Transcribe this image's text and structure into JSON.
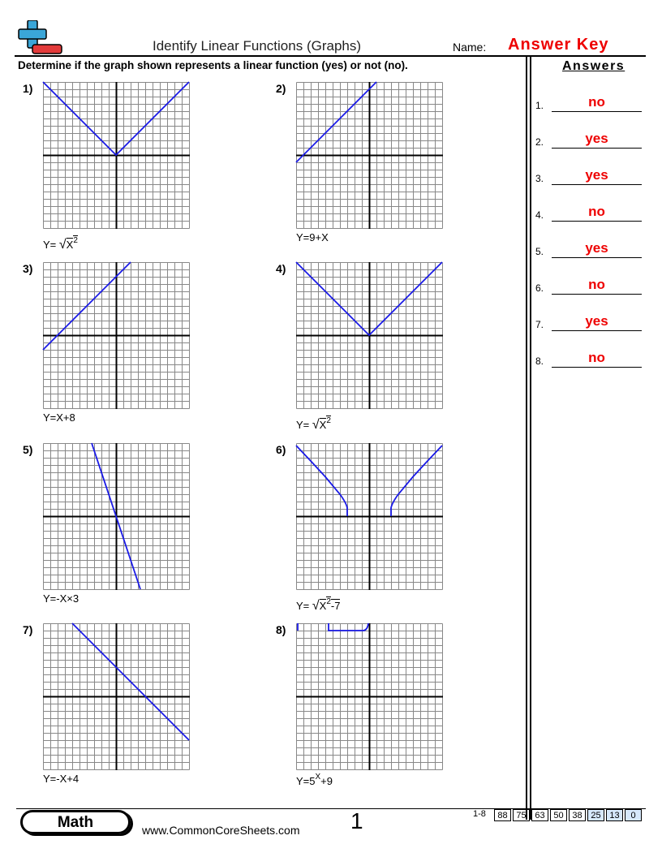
{
  "header": {
    "title": "Identify Linear Functions (Graphs)",
    "name_label": "Name:",
    "name_value": "Answer Key"
  },
  "instructions": "Determine if the graph shown represents a linear function (yes) or not (no).",
  "problems": [
    {
      "number": "1)",
      "equation": [
        {
          "text": "Y= "
        },
        {
          "text": "√"
        },
        {
          "text": "X",
          "style": "root"
        },
        {
          "text": "2",
          "style": "root-sup"
        }
      ]
    },
    {
      "number": "2)",
      "equation": [
        {
          "text": "Y=9+X"
        }
      ]
    },
    {
      "number": "3)",
      "equation": [
        {
          "text": "Y=X+8"
        }
      ]
    },
    {
      "number": "4)",
      "equation": [
        {
          "text": "Y= "
        },
        {
          "text": "√"
        },
        {
          "text": "X",
          "style": "root"
        },
        {
          "text": "2",
          "style": "root-sup"
        }
      ]
    },
    {
      "number": "5)",
      "equation": [
        {
          "text": "Y=-X×3"
        }
      ]
    },
    {
      "number": "6)",
      "equation": [
        {
          "text": "Y= "
        },
        {
          "text": "√"
        },
        {
          "text": "X",
          "style": "root"
        },
        {
          "text": "2",
          "style": "root-sup"
        },
        {
          "text": "-7",
          "style": "root"
        }
      ]
    },
    {
      "number": "7)",
      "equation": [
        {
          "text": "Y=-X+4"
        }
      ]
    },
    {
      "number": "8)",
      "equation": [
        {
          "text": "Y=5"
        },
        {
          "text": "X",
          "style": "sup"
        },
        {
          "text": "+9"
        }
      ]
    }
  ],
  "answers_panel": {
    "title": "Answers",
    "items": [
      {
        "number": "1.",
        "answer": "no"
      },
      {
        "number": "2.",
        "answer": "yes"
      },
      {
        "number": "3.",
        "answer": "yes"
      },
      {
        "number": "4.",
        "answer": "no"
      },
      {
        "number": "5.",
        "answer": "yes"
      },
      {
        "number": "6.",
        "answer": "no"
      },
      {
        "number": "7.",
        "answer": "yes"
      },
      {
        "number": "8.",
        "answer": "no"
      }
    ]
  },
  "footer": {
    "subject": "Math",
    "website": "www.CommonCoreSheets.com",
    "page": "1",
    "range": "1-8",
    "scores": [
      "88",
      "75",
      "63",
      "50",
      "38",
      "25",
      "13",
      "0"
    ]
  }
}
